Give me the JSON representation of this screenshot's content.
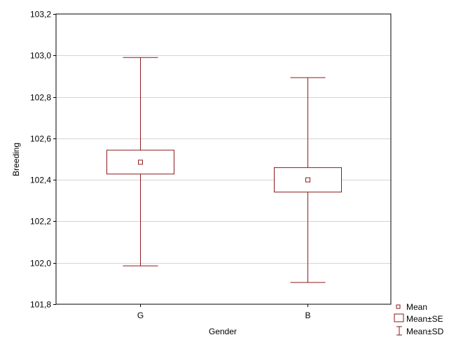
{
  "chart_data": {
    "type": "box",
    "title": "",
    "xlabel": "Gender",
    "ylabel": "Breeding",
    "ylim": [
      101.8,
      103.2
    ],
    "y_ticks": [
      "101,8",
      "102,0",
      "102,2",
      "102,4",
      "102,6",
      "102,8",
      "103,0",
      "103,2"
    ],
    "y_tick_values": [
      101.8,
      102.0,
      102.2,
      102.4,
      102.6,
      102.8,
      103.0,
      103.2
    ],
    "grid": true,
    "legend_position": "bottom-right outside",
    "categories": [
      "G",
      "B"
    ],
    "series": [
      {
        "mean": [
          102.485,
          102.4
        ],
        "se_low": [
          102.428,
          102.341
        ],
        "se_high": [
          102.543,
          102.459
        ],
        "sd_low": [
          101.985,
          101.905
        ],
        "sd_high": [
          102.99,
          102.893
        ]
      }
    ],
    "legend": [
      {
        "symbol": "mean-marker",
        "label": "Mean"
      },
      {
        "symbol": "se-box",
        "label": "Mean±SE"
      },
      {
        "symbol": "sd-whisker",
        "label": "Mean±SD"
      }
    ],
    "colors": {
      "box": "#8b1a1a",
      "marker_fill": "#ffffff",
      "grid": "#d4d4d4",
      "frame": "#000000"
    }
  }
}
